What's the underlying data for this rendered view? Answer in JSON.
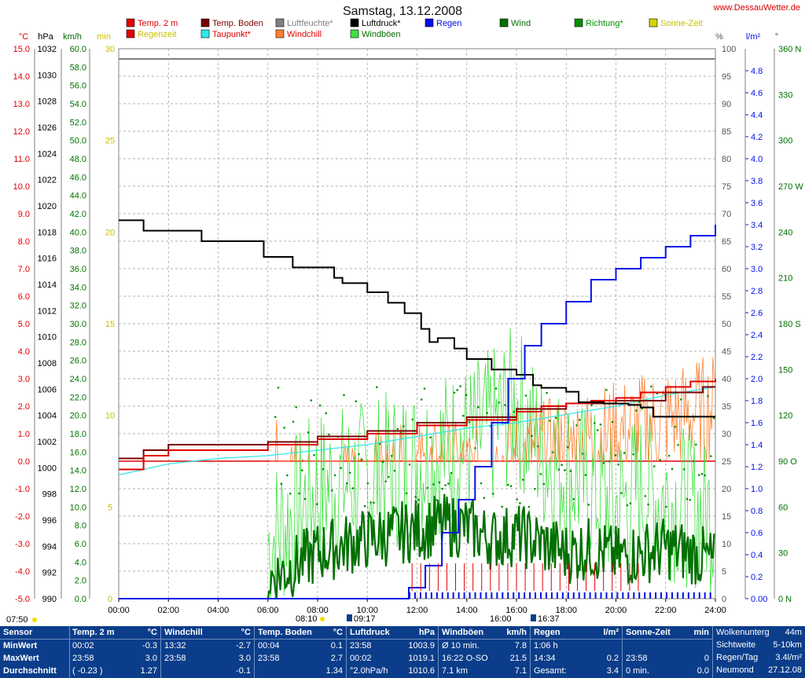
{
  "title": "Samstag, 13.12.2008",
  "brand": "www.DessauWetter.de",
  "colors": {
    "temp2m": "#e00000",
    "tempboden": "#7a0000",
    "luftfeuchte": "#808080",
    "luftdruck": "#000000",
    "regen": "#0010e8",
    "wind": "#007000",
    "richtung": "#009000",
    "sonne": "#d8d000",
    "regenzeit": "#e00000",
    "taupunkt": "#30e8e8",
    "windchill": "#ff8030",
    "windboeen": "#40e040",
    "stats_bg": "#0b3d8a"
  },
  "legend": [
    {
      "label": "Temp. 2 m",
      "color": "#e00000",
      "text_color": "#e00000"
    },
    {
      "label": "Temp. Boden",
      "color": "#7a0000",
      "text_color": "#7a0000"
    },
    {
      "label": "Luftfeuchte*",
      "color": "#808080",
      "text_color": "#808080"
    },
    {
      "label": "Luftdruck*",
      "color": "#000000",
      "text_color": "#000000"
    },
    {
      "label": "Regen",
      "color": "#0010e8",
      "text_color": "#0010e8"
    },
    {
      "label": "Wind",
      "color": "#007000",
      "text_color": "#007000"
    },
    {
      "label": "Richtung*",
      "color": "#009000",
      "text_color": "#009000"
    },
    {
      "label": "Sonne-Zeit",
      "color": "#d8d000",
      "text_color": "#c8c000"
    },
    {
      "label": "Regenzeit",
      "color": "#e00000",
      "text_color": "#c8c000"
    },
    {
      "label": "Taupunkt*",
      "color": "#30e8e8",
      "text_color": "#e00000"
    },
    {
      "label": "Windchill",
      "color": "#ff8030",
      "text_color": "#e00000"
    },
    {
      "label": "Windböen",
      "color": "#40e040",
      "text_color": "#007000"
    }
  ],
  "axes": {
    "temp": {
      "unit": "°C",
      "ticks": [
        "15.0",
        "14.0",
        "13.0",
        "12.0",
        "11.0",
        "10.0",
        "9.0",
        "8.0",
        "7.0",
        "6.0",
        "5.0",
        "4.0",
        "3.0",
        "2.0",
        "1.0",
        "0.0",
        "-1.0",
        "-2.0",
        "-3.0",
        "-4.0",
        "-5.0"
      ],
      "color": "#e00000"
    },
    "pressure": {
      "unit": "hPa",
      "ticks": [
        "1032",
        "1030",
        "1028",
        "1026",
        "1024",
        "1022",
        "1020",
        "1018",
        "1016",
        "1014",
        "1012",
        "1010",
        "1008",
        "1006",
        "1004",
        "1002",
        "1000",
        "998",
        "996",
        "994",
        "992",
        "990"
      ],
      "color": "#000000"
    },
    "wind": {
      "unit": "km/h",
      "ticks": [
        "60.0",
        "58.0",
        "56.0",
        "54.0",
        "52.0",
        "50.0",
        "48.0",
        "46.0",
        "44.0",
        "42.0",
        "40.0",
        "38.0",
        "36.0",
        "34.0",
        "32.0",
        "30.0",
        "28.0",
        "26.0",
        "24.0",
        "22.0",
        "20.0",
        "18.0",
        "16.0",
        "14.0",
        "12.0",
        "10.0",
        "8.0",
        "6.0",
        "4.0",
        "2.0",
        "0.0"
      ],
      "color": "#007000"
    },
    "minutes": {
      "unit": "min",
      "ticks": [
        "30",
        "25",
        "20",
        "15",
        "10",
        "5",
        "0"
      ],
      "color": "#c8c000"
    },
    "humidity": {
      "unit": "%",
      "ticks": [
        "100",
        "95",
        "90",
        "85",
        "80",
        "75",
        "70",
        "65",
        "60",
        "55",
        "50",
        "45",
        "40",
        "35",
        "30",
        "25",
        "20",
        "15",
        "10",
        "5",
        "0"
      ],
      "color": "#555555"
    },
    "rain": {
      "unit": "l/m²",
      "ticks": [
        "4.8",
        "4.6",
        "4.4",
        "4.2",
        "4.0",
        "3.8",
        "3.6",
        "3.4",
        "3.2",
        "3.0",
        "2.8",
        "2.6",
        "2.4",
        "2.2",
        "2.0",
        "1.8",
        "1.6",
        "1.4",
        "1.2",
        "1.0",
        "0.8",
        "0.6",
        "0.4",
        "0.2",
        "0.00"
      ],
      "color": "#0010e8"
    },
    "direction": {
      "unit": "°",
      "ticks": [
        "360 N",
        "330",
        "300",
        "270 W",
        "240",
        "210",
        "180 S",
        "150",
        "120",
        "90 O",
        "60",
        "30",
        "0 N"
      ],
      "color": "#007000"
    },
    "time": {
      "ticks": [
        "00:00",
        "02:00",
        "04:00",
        "06:00",
        "08:00",
        "10:00",
        "12:00",
        "14:00",
        "16:00",
        "18:00",
        "20:00",
        "22:00",
        "24:00"
      ]
    }
  },
  "sun": {
    "sunrise": "07:50",
    "sunshine_start": "08:10",
    "rise_marker": "09:17",
    "sunshine_end": "16:00",
    "set_marker": "16:37"
  },
  "chart_data": {
    "type": "line",
    "title": "Samstag, 13.12.2008",
    "x_range": [
      "00:00",
      "24:00"
    ],
    "series": [
      {
        "name": "Luftdruck",
        "unit": "hPa",
        "x": [
          "00:00",
          "00:50",
          "01:00",
          "03:00",
          "03:20",
          "05:00",
          "05:50",
          "07:00",
          "08:40",
          "09:00",
          "10:00",
          "10:50",
          "11:30",
          "12:10",
          "12:30",
          "12:50",
          "13:30",
          "14:00",
          "15:00",
          "16:00",
          "16:40",
          "17:00",
          "18:00",
          "18:30",
          "19:30",
          "20:30",
          "21:00",
          "21:30",
          "22:00",
          "24:00"
        ],
        "values": [
          1018.9,
          1018.9,
          1018.1,
          1018.1,
          1017.3,
          1017.3,
          1016.1,
          1015.3,
          1014.5,
          1014.1,
          1013.4,
          1012.6,
          1011.8,
          1010.6,
          1009.6,
          1009.9,
          1009.1,
          1008.3,
          1007.5,
          1007.1,
          1006.3,
          1006.1,
          1005.8,
          1005.0,
          1004.9,
          1004.8,
          1004.6,
          1003.9,
          1003.9,
          1003.9
        ]
      },
      {
        "name": "Temp. 2 m",
        "unit": "°C",
        "x": [
          "00:00",
          "01:00",
          "02:00",
          "06:00",
          "08:00",
          "10:00",
          "12:00",
          "14:00",
          "16:00",
          "17:00",
          "18:00",
          "19:00",
          "20:00",
          "21:00",
          "22:00",
          "23:00",
          "24:00"
        ],
        "values": [
          -0.3,
          0.2,
          0.4,
          0.6,
          0.8,
          1.0,
          1.3,
          1.5,
          1.8,
          2.0,
          2.1,
          2.2,
          2.3,
          2.5,
          2.7,
          2.9,
          3.0
        ]
      },
      {
        "name": "Temp. Boden",
        "unit": "°C",
        "x": [
          "00:00",
          "01:00",
          "02:00",
          "06:00",
          "08:00",
          "10:00",
          "12:00",
          "14:00",
          "16:00",
          "18:00",
          "20:00",
          "22:00",
          "23:30",
          "24:00"
        ],
        "values": [
          0.1,
          0.4,
          0.6,
          0.7,
          0.9,
          1.1,
          1.4,
          1.6,
          1.9,
          2.1,
          2.2,
          2.5,
          2.7,
          2.7
        ]
      },
      {
        "name": "Taupunkt",
        "unit": "°C",
        "x": [
          "00:00",
          "01:00",
          "02:00",
          "04:00",
          "06:00",
          "08:00",
          "10:00",
          "12:00",
          "14:00",
          "16:00",
          "18:00",
          "20:00",
          "22:00",
          "24:00"
        ],
        "values": [
          -0.5,
          -0.3,
          -0.1,
          0.1,
          0.2,
          0.4,
          0.6,
          0.9,
          1.2,
          1.4,
          1.7,
          2.0,
          2.4,
          2.7
        ]
      },
      {
        "name": "Regen",
        "unit": "l/m²",
        "x": [
          "00:00",
          "11:00",
          "11:40",
          "12:20",
          "13:00",
          "13:40",
          "14:20",
          "15:00",
          "15:40",
          "16:20",
          "17:00",
          "18:00",
          "19:00",
          "20:00",
          "21:00",
          "22:00",
          "23:00",
          "24:00"
        ],
        "values": [
          0.0,
          0.0,
          0.1,
          0.3,
          0.6,
          0.9,
          1.2,
          1.6,
          2.0,
          2.3,
          2.5,
          2.7,
          2.9,
          3.0,
          3.1,
          3.2,
          3.3,
          3.4
        ]
      },
      {
        "name": "Wind",
        "unit": "km/h",
        "x": [
          "06:00",
          "08:00",
          "10:00",
          "12:00",
          "13:00",
          "14:00",
          "15:00",
          "16:00",
          "17:00",
          "18:00",
          "19:00",
          "20:00",
          "21:00",
          "22:00",
          "23:00",
          "24:00"
        ],
        "values": [
          2.0,
          5.0,
          6.5,
          7.5,
          8.0,
          7.8,
          6.5,
          7.0,
          6.0,
          5.0,
          5.5,
          4.5,
          5.0,
          5.5,
          5.0,
          4.0
        ]
      },
      {
        "name": "Windböen",
        "unit": "km/h",
        "x": [
          "06:00",
          "08:00",
          "10:00",
          "12:00",
          "13:00",
          "14:00",
          "15:00",
          "16:00",
          "17:00",
          "18:00",
          "19:00",
          "20:00",
          "21:00",
          "22:00",
          "23:00",
          "24:00"
        ],
        "values": [
          6.0,
          12.0,
          13.0,
          15.0,
          16.0,
          17.0,
          18.5,
          21.5,
          16.0,
          14.0,
          12.0,
          10.0,
          12.0,
          11.0,
          10.0,
          9.0
        ]
      },
      {
        "name": "Windchill",
        "unit": "°C",
        "x": [
          "06:00",
          "08:00",
          "10:00",
          "12:00",
          "14:00",
          "16:00",
          "18:00",
          "20:00",
          "22:00",
          "24:00"
        ],
        "values": [
          0.0,
          -1.5,
          -1.0,
          -0.5,
          -0.5,
          0.0,
          0.5,
          1.0,
          1.5,
          2.0
        ]
      }
    ]
  },
  "stats": {
    "row_labels": [
      "Sensor",
      "MinWert",
      "MaxWert",
      "Durchschnitt"
    ],
    "columns": [
      {
        "head": "Temp. 2 m",
        "unit": "°C",
        "rows": [
          [
            "00:02",
            "-0.3"
          ],
          [
            "23:58",
            "3.0"
          ],
          [
            "( -0.23 )",
            "1.27"
          ]
        ]
      },
      {
        "head": "Windchill",
        "unit": "°C",
        "rows": [
          [
            "13:32",
            "-2.7"
          ],
          [
            "23:58",
            "3.0"
          ],
          [
            "",
            "-0.1"
          ]
        ]
      },
      {
        "head": "Temp. Boden",
        "unit": "°C",
        "rows": [
          [
            "00:04",
            "0.1"
          ],
          [
            "23:58",
            "2.7"
          ],
          [
            "",
            "1.34"
          ]
        ]
      },
      {
        "head": "Luftdruck",
        "unit": "hPa",
        "rows": [
          [
            "23:58",
            "1003.9"
          ],
          [
            "00:02",
            "1019.1"
          ],
          [
            "°2.0hPa/h",
            "1010.6"
          ]
        ]
      },
      {
        "head": "Windböen",
        "unit": "km/h",
        "rows": [
          [
            "Ø 10 min.",
            "7.8"
          ],
          [
            "16:22   O-SO",
            "21.5"
          ],
          [
            "7.1 km",
            "7.1"
          ]
        ]
      },
      {
        "head": "Regen",
        "unit": "l/m²",
        "rows": [
          [
            "1:06 h",
            ""
          ],
          [
            "14:34",
            "0.2"
          ],
          [
            "Gesamt:",
            "3.4"
          ]
        ]
      },
      {
        "head": "Sonne-Zeit",
        "unit": "min",
        "rows": [
          [
            "",
            ""
          ],
          [
            "23:58",
            "0"
          ],
          [
            "0 min.",
            "0.0"
          ]
        ]
      }
    ],
    "extra": [
      [
        "Wolkenunterg",
        "44m"
      ],
      [
        "Sichtweite",
        "5-10km"
      ],
      [
        "Regen/Tag",
        "3.4l/m²"
      ],
      [
        "Neumond",
        "27.12.08"
      ]
    ]
  }
}
